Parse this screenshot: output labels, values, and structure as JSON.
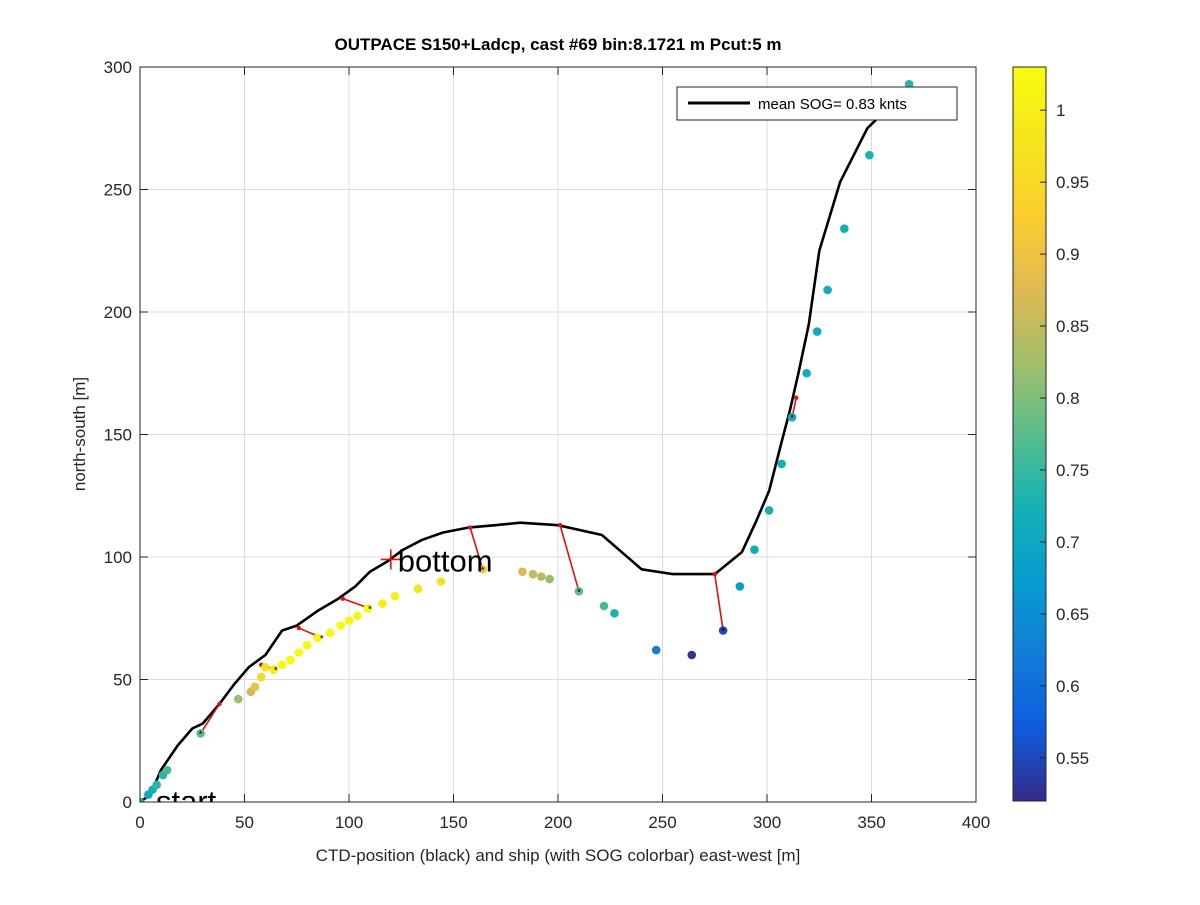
{
  "chart_data": {
    "type": "scatter",
    "title": "OUTPACE S150+Ladcp, cast #69 bin:8.1721 m  Pcut:5 m",
    "xlabel": "CTD-position (black) and ship (with SOG colorbar) east-west [m]",
    "ylabel": "north-south [m]",
    "xlim": [
      0,
      400
    ],
    "ylim": [
      0,
      300
    ],
    "xticks": [
      "0",
      "50",
      "100",
      "150",
      "200",
      "250",
      "300",
      "350",
      "400"
    ],
    "yticks": [
      "0",
      "50",
      "100",
      "150",
      "200",
      "250",
      "300"
    ],
    "grid": true,
    "legend": {
      "position": "top-right",
      "entries": [
        {
          "name": "mean SOG=  0.83 knts",
          "color": "#000000"
        }
      ]
    },
    "colorbar": {
      "range": [
        0.52,
        1.03
      ],
      "ticks": [
        "0.55",
        "0.6",
        "0.65",
        "0.7",
        "0.75",
        "0.8",
        "0.85",
        "0.9",
        "0.95",
        "1"
      ],
      "colormap": "parula"
    },
    "annotations": [
      {
        "text": "start",
        "x": 0,
        "y": 0
      },
      {
        "text": "bottom",
        "x": 120,
        "y": 99
      }
    ],
    "ctd_track": {
      "name": "CTD position",
      "color": "#000000",
      "x": [
        0,
        5,
        10,
        18,
        25,
        30,
        38,
        45,
        52,
        60,
        68,
        75,
        85,
        95,
        103,
        110,
        118,
        126,
        135,
        145,
        157,
        170,
        182,
        200,
        221,
        240,
        255,
        275,
        288,
        295,
        301,
        307,
        311,
        315,
        320,
        325,
        335,
        348,
        360,
        368
      ],
      "y": [
        0,
        3,
        13,
        23,
        30,
        32,
        40,
        48,
        55,
        60,
        70,
        72,
        78,
        83,
        88,
        94,
        98,
        103,
        107,
        110,
        112,
        113,
        114,
        113,
        109,
        95,
        93,
        93,
        102,
        115,
        127,
        147,
        160,
        175,
        195,
        225,
        253,
        275,
        285,
        293
      ]
    },
    "ship_points": {
      "name": "ship (SOG)",
      "x": [
        0,
        4,
        6,
        8,
        11,
        13,
        29,
        47,
        53,
        55,
        58,
        60,
        64,
        68,
        72,
        76,
        80,
        85,
        91,
        96,
        100,
        104,
        109,
        116,
        122,
        133,
        144,
        164,
        183,
        188,
        192,
        196,
        210,
        222,
        227,
        247,
        264,
        279,
        287,
        294,
        301,
        307,
        312,
        319,
        324,
        329,
        337,
        349,
        368
      ],
      "y": [
        0,
        3,
        5,
        7,
        11,
        13,
        28,
        42,
        45,
        47,
        51,
        55,
        54,
        56,
        58,
        61,
        64,
        67,
        69,
        72,
        74,
        76,
        79,
        81,
        84,
        87,
        90,
        95,
        94,
        93,
        92,
        91,
        86,
        80,
        77,
        62,
        60,
        70,
        88,
        103,
        119,
        138,
        157,
        175,
        192,
        209,
        234,
        264,
        293
      ],
      "sog": [
        0.72,
        0.7,
        0.72,
        0.74,
        0.74,
        0.76,
        0.78,
        0.82,
        0.86,
        0.9,
        0.95,
        0.97,
        1.0,
        1.02,
        1.02,
        1.02,
        1.02,
        1.02,
        1.02,
        1.02,
        1.02,
        1.02,
        1.02,
        1.0,
        1.0,
        0.98,
        0.97,
        0.92,
        0.87,
        0.85,
        0.84,
        0.82,
        0.78,
        0.76,
        0.73,
        0.62,
        0.53,
        0.55,
        0.68,
        0.71,
        0.72,
        0.72,
        0.72,
        0.71,
        0.71,
        0.71,
        0.72,
        0.73,
        0.74
      ]
    },
    "connectors": [
      {
        "ctd": [
          38,
          40
        ],
        "ship": [
          29,
          28
        ]
      },
      {
        "ctd": [
          58,
          56
        ],
        "ship": [
          65,
          54
        ]
      },
      {
        "ctd": [
          76,
          71
        ],
        "ship": [
          87,
          67
        ]
      },
      {
        "ctd": [
          97,
          83
        ],
        "ship": [
          110,
          79
        ]
      },
      {
        "ctd": [
          158,
          112
        ],
        "ship": [
          164,
          95
        ]
      },
      {
        "ctd": [
          201,
          113
        ],
        "ship": [
          210,
          86
        ]
      },
      {
        "ctd": [
          275,
          93
        ],
        "ship": [
          279,
          70
        ]
      },
      {
        "ctd": [
          314,
          165
        ],
        "ship": [
          312,
          157
        ]
      }
    ]
  }
}
